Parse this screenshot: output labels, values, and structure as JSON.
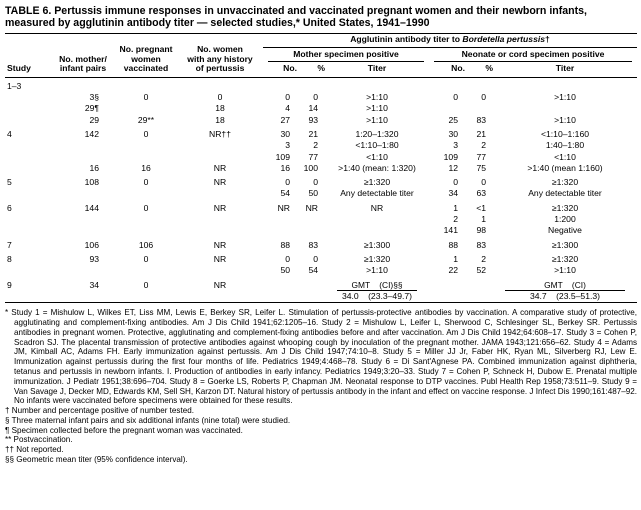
{
  "title": "TABLE 6. Pertussis immune responses in unvaccinated and vaccinated pregnant women and their newborn infants, measured by agglutinin antibody titer — selected studies,* United States, 1941–1990",
  "table": {
    "header": {
      "study": "Study",
      "pairs": "No. mother/\ninfant pairs",
      "vaccinated": "No. pregnant\nwomen\nvaccinated",
      "history": "No. women\nwith any history\nof pertussis",
      "agglutinin_prefix": "Agglutinin antibody titer to ",
      "agglutinin_italic": "Bordetella pertussis",
      "agglutinin_suffix": "†",
      "mother_group": "Mother specimen positive",
      "neonate_group": "Neonate or cord specimen positive",
      "no": "No.",
      "pct": "%",
      "titer": "Titer"
    },
    "rows": [
      {
        "cells": [
          "1–3",
          "",
          "",
          "",
          "",
          "",
          "",
          "",
          "",
          ""
        ]
      },
      {
        "cells": [
          "",
          "3§",
          "0",
          "0",
          "0",
          "0",
          ">1:10",
          "0",
          "0",
          ">1:10"
        ]
      },
      {
        "cells": [
          "",
          "29¶",
          "",
          "18",
          "4",
          "14",
          ">1:10",
          "",
          "",
          ""
        ]
      },
      {
        "cells": [
          "",
          "29",
          "29**",
          "18",
          "27",
          "93",
          ">1:10",
          "25",
          "83",
          ">1:10"
        ]
      },
      {
        "cells": [
          "4",
          "142",
          "0",
          "NR††",
          "30",
          "21",
          "1:20–1:320",
          "30",
          "21",
          "<1:10–1:160"
        ]
      },
      {
        "cells": [
          "",
          "",
          "",
          "",
          "3",
          "2",
          "<1:10–1:80",
          "3",
          "2",
          "1:40–1:80"
        ]
      },
      {
        "cells": [
          "",
          "",
          "",
          "",
          "109",
          "77",
          "<1:10",
          "109",
          "77",
          "<1:10"
        ]
      },
      {
        "cells": [
          "",
          "16",
          "16",
          "NR",
          "16",
          "100",
          ">1:40 (mean: 1:320)",
          "12",
          "75",
          ">1:40 (mean 1:160)"
        ]
      },
      {
        "cells": [
          "5",
          "108",
          "0",
          "NR",
          "0",
          "0",
          "≥1:320",
          "0",
          "0",
          "≥1:320"
        ]
      },
      {
        "cells": [
          "",
          "",
          "",
          "",
          "54",
          "50",
          "Any detectable titer",
          "34",
          "63",
          "Any detectable titer"
        ]
      },
      {
        "cells": [
          "6",
          "144",
          "0",
          "NR",
          "NR",
          "NR",
          "NR",
          "1",
          "<1",
          "≥1:320"
        ]
      },
      {
        "cells": [
          "",
          "",
          "",
          "",
          "",
          "",
          "",
          "2",
          "1",
          "1:200"
        ]
      },
      {
        "cells": [
          "",
          "",
          "",
          "",
          "",
          "",
          "",
          "141",
          "98",
          "Negative"
        ]
      },
      {
        "cells": [
          "7",
          "106",
          "106",
          "NR",
          "88",
          "83",
          "≥1:300",
          "88",
          "83",
          "≥1:300"
        ]
      },
      {
        "cells": [
          "8",
          "93",
          "0",
          "NR",
          "0",
          "0",
          "≥1:320",
          "1",
          "2",
          "≥1:320"
        ]
      },
      {
        "cells": [
          "",
          "",
          "",
          "",
          "50",
          "54",
          ">1:10",
          "22",
          "52",
          ">1:10"
        ]
      },
      {
        "cells": [
          "9",
          "34",
          "0",
          "NR",
          "",
          "",
          "GMT (CI)§§",
          "",
          "",
          "GMT (CI)"
        ],
        "gmt_header": true
      },
      {
        "cells": [
          "",
          "",
          "",
          "",
          "",
          "",
          "34.0 (23.3–49.7)",
          "",
          "",
          "34.7 (23.5–51.3)"
        ],
        "gmt_values": true
      }
    ]
  },
  "footnotes": [
    {
      "symbol": "*",
      "justify": true,
      "text": "Study 1 = Mishulow L, Wilkes ET, Liss MM, Lewis E, Berkey SR, Leifer L. Stimulation of pertussis-protective antibodies by vaccination. A comparative study of protective, agglutinating and complement-fixing antibodies. Am J Dis Child 1941;62:1205–16. Study 2 = Mishulow L, Leifer L, Sherwood C, Schlesinger SL, Berkey SR. Pertussis antibodies in pregnant women. Protective, agglutinating and complement-fixing antibodies before and after vaccination. Am J Dis Child 1942;64:608–17. Study 3 = Cohen P, Scadron SJ. The placental transmission of protective antibodies against whooping cough by inoculation of the pregnant mother. JAMA 1943;121:656–62. Study 4 = Adams JM, Kimball AC, Adams FH. Early immunization against pertussis. Am J Dis Child 1947;74:10–8. Study 5 = Miller JJ Jr, Faber HK, Ryan ML, Silverberg RJ, Lew E. Immunization against pertussis during the first four months of life. Pediatrics 1949;4:468–78. Study 6 = Di Sant'Agnese PA. Combined immunization against diphtheria, tetanus and pertussis in newborn infants. I. Production of antibodies in early infancy. Pediatrics 1949;3:20–33. Study 7 = Cohen P, Schneck H, Dubow E. Prenatal multiple immunization. J Pediatr 1951;38:696–704. Study 8 = Goerke LS, Roberts P, Chapman JM. Neonatal response to DTP vaccines. Publ Health Rep 1958;73:511–9. Study 9 = Van Savage J, Decker MD, Edwards KM, Sell SH, Karzon DT. Natural history of pertussis antibody in the infant and effect on vaccine response. J Infect Dis 1990;161:487–92. No infants were vaccinated before specimens were obtained for these results."
    },
    {
      "symbol": "†",
      "text": "Number and percentage positive of number tested."
    },
    {
      "symbol": "§",
      "text": "Three maternal infant pairs and six additional infants (nine total) were studied."
    },
    {
      "symbol": "¶",
      "text": "Specimen collected before the pregnant woman was vaccinated."
    },
    {
      "symbol": "**",
      "text": "Postvaccination."
    },
    {
      "symbol": "††",
      "text": "Not reported."
    },
    {
      "symbol": "§§",
      "text": "Geometric mean titer (95% confidence interval)."
    }
  ]
}
